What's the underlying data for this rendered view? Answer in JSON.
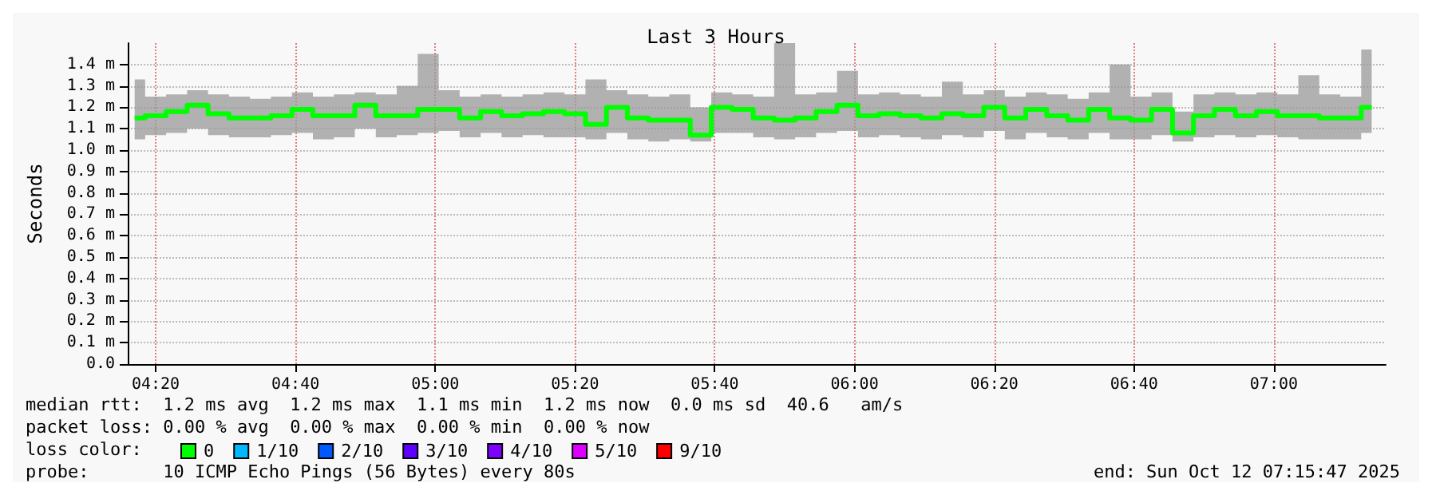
{
  "chart_data": {
    "type": "step",
    "title": "Last 3 Hours",
    "ylabel": "Seconds",
    "x": [
      4.2833,
      4.3333,
      4.3833,
      4.4333,
      4.4833,
      4.5333,
      4.5833,
      4.6333,
      4.6833,
      4.7333,
      4.7833,
      4.8333,
      4.8833,
      4.9333,
      4.9833,
      5.0333,
      5.0833,
      5.1333,
      5.1833,
      5.2333,
      5.2833,
      5.3333,
      5.3833,
      5.4333,
      5.4833,
      5.5333,
      5.5833,
      5.6333,
      5.6833,
      5.7333,
      5.7833,
      5.8333,
      5.8833,
      5.9333,
      5.9833,
      6.0333,
      6.0833,
      6.1333,
      6.1833,
      6.2333,
      6.2833,
      6.3333,
      6.3833,
      6.4333,
      6.4833,
      6.5333,
      6.5833,
      6.6333,
      6.6833,
      6.7333,
      6.7833,
      6.8333,
      6.8833,
      6.9333,
      6.9833,
      7.0333,
      7.0833,
      7.1333,
      7.1833,
      7.2333
    ],
    "series": [
      {
        "name": "0",
        "color": "#00ff00",
        "values": [
          1.15,
          1.16,
          1.18,
          1.21,
          1.17,
          1.15,
          1.15,
          1.16,
          1.19,
          1.16,
          1.16,
          1.21,
          1.16,
          1.16,
          1.19,
          1.19,
          1.15,
          1.18,
          1.16,
          1.17,
          1.18,
          1.17,
          1.12,
          1.2,
          1.15,
          1.14,
          1.14,
          1.07,
          1.2,
          1.19,
          1.15,
          1.14,
          1.15,
          1.18,
          1.21,
          1.16,
          1.17,
          1.16,
          1.15,
          1.17,
          1.16,
          1.2,
          1.15,
          1.19,
          1.16,
          1.14,
          1.19,
          1.15,
          1.14,
          1.19,
          1.08,
          1.16,
          1.19,
          1.16,
          1.18,
          1.16,
          1.16,
          1.15,
          1.15,
          1.2
        ],
        "lower": [
          1.05,
          1.07,
          1.08,
          1.1,
          1.07,
          1.06,
          1.06,
          1.07,
          1.08,
          1.05,
          1.06,
          1.1,
          1.06,
          1.07,
          1.08,
          1.09,
          1.06,
          1.08,
          1.06,
          1.07,
          1.06,
          1.06,
          1.05,
          1.08,
          1.05,
          1.04,
          1.05,
          1.04,
          1.08,
          1.08,
          1.06,
          1.05,
          1.06,
          1.08,
          1.09,
          1.06,
          1.07,
          1.06,
          1.05,
          1.07,
          1.06,
          1.09,
          1.05,
          1.08,
          1.06,
          1.05,
          1.08,
          1.05,
          1.05,
          1.07,
          1.04,
          1.06,
          1.07,
          1.06,
          1.07,
          1.06,
          1.05,
          1.05,
          1.05,
          1.08
        ],
        "upper": [
          1.33,
          1.25,
          1.26,
          1.28,
          1.26,
          1.25,
          1.24,
          1.25,
          1.27,
          1.25,
          1.26,
          1.27,
          1.26,
          1.3,
          1.45,
          1.28,
          1.25,
          1.26,
          1.25,
          1.26,
          1.27,
          1.26,
          1.33,
          1.28,
          1.26,
          1.25,
          1.26,
          1.2,
          1.27,
          1.26,
          1.25,
          1.5,
          1.26,
          1.27,
          1.37,
          1.26,
          1.27,
          1.26,
          1.25,
          1.32,
          1.26,
          1.28,
          1.25,
          1.27,
          1.26,
          1.24,
          1.27,
          1.4,
          1.25,
          1.27,
          1.18,
          1.26,
          1.27,
          1.26,
          1.27,
          1.26,
          1.35,
          1.26,
          1.25,
          1.47
        ]
      },
      {
        "name": "1/10",
        "color": "#00b8ff",
        "values": [
          null,
          null,
          null,
          null,
          null,
          null,
          null,
          null,
          null,
          null,
          null,
          null,
          null,
          null,
          null,
          null,
          null,
          null,
          null,
          null,
          null,
          null,
          null,
          null,
          null,
          null,
          null,
          null,
          null,
          null,
          null,
          null,
          null,
          null,
          null,
          null,
          null,
          null,
          null,
          null,
          null,
          null,
          null,
          null,
          null,
          null,
          null,
          null,
          null,
          null,
          null,
          null,
          null,
          null,
          null,
          null,
          null,
          null,
          null,
          null
        ]
      },
      {
        "name": "2/10",
        "color": "#0059ff",
        "values": [
          null,
          null,
          null,
          null,
          null,
          null,
          null,
          null,
          null,
          null,
          null,
          null,
          null,
          null,
          null,
          null,
          null,
          null,
          null,
          null,
          null,
          null,
          null,
          null,
          null,
          null,
          null,
          null,
          null,
          null,
          null,
          null,
          null,
          null,
          null,
          null,
          null,
          null,
          null,
          null,
          null,
          null,
          null,
          null,
          null,
          null,
          null,
          null,
          null,
          null,
          null,
          null,
          null,
          null,
          null,
          null,
          null,
          null,
          null,
          null
        ]
      },
      {
        "name": "3/10",
        "color": "#5e00ff",
        "values": [
          null,
          null,
          null,
          null,
          null,
          null,
          null,
          null,
          null,
          null,
          null,
          null,
          null,
          null,
          null,
          null,
          null,
          null,
          null,
          null,
          null,
          null,
          null,
          null,
          null,
          null,
          null,
          null,
          null,
          null,
          null,
          null,
          null,
          null,
          null,
          null,
          null,
          null,
          null,
          null,
          null,
          null,
          null,
          null,
          null,
          null,
          null,
          null,
          null,
          null,
          null,
          null,
          null,
          null,
          null,
          null,
          null,
          null,
          null,
          null
        ]
      },
      {
        "name": "4/10",
        "color": "#7e00ff",
        "values": [
          null,
          null,
          null,
          null,
          null,
          null,
          null,
          null,
          null,
          null,
          null,
          null,
          null,
          null,
          null,
          null,
          null,
          null,
          null,
          null,
          null,
          null,
          null,
          null,
          null,
          null,
          null,
          null,
          null,
          null,
          null,
          null,
          null,
          null,
          null,
          null,
          null,
          null,
          null,
          null,
          null,
          null,
          null,
          null,
          null,
          null,
          null,
          null,
          null,
          null,
          null,
          null,
          null,
          null,
          null,
          null,
          null,
          null,
          null,
          null
        ]
      },
      {
        "name": "5/10",
        "color": "#dd00ff",
        "values": [
          null,
          null,
          null,
          null,
          null,
          null,
          null,
          null,
          null,
          null,
          null,
          null,
          null,
          null,
          null,
          null,
          null,
          null,
          null,
          null,
          null,
          null,
          null,
          null,
          null,
          null,
          null,
          null,
          null,
          null,
          null,
          null,
          null,
          null,
          null,
          null,
          null,
          null,
          null,
          null,
          null,
          null,
          null,
          null,
          null,
          null,
          null,
          null,
          null,
          null,
          null,
          null,
          null,
          null,
          null,
          null,
          null,
          null,
          null,
          null
        ]
      },
      {
        "name": "9/10",
        "color": "#ff0000",
        "values": [
          null,
          null,
          null,
          null,
          null,
          null,
          null,
          null,
          null,
          null,
          null,
          null,
          null,
          null,
          null,
          null,
          null,
          null,
          null,
          null,
          null,
          null,
          null,
          null,
          null,
          null,
          null,
          null,
          null,
          null,
          null,
          null,
          null,
          null,
          null,
          null,
          null,
          null,
          null,
          null,
          null,
          null,
          null,
          null,
          null,
          null,
          null,
          null,
          null,
          null,
          null,
          null,
          null,
          null,
          null,
          null,
          null,
          null,
          null,
          null
        ]
      }
    ],
    "xlim": [
      4.2667,
      7.2667
    ],
    "xticks": [
      {
        "value": 4.3333,
        "label": "04:20"
      },
      {
        "value": 4.6667,
        "label": "04:40"
      },
      {
        "value": 5,
        "label": "05:00"
      },
      {
        "value": 5.3333,
        "label": "05:20"
      },
      {
        "value": 5.6667,
        "label": "05:40"
      },
      {
        "value": 6,
        "label": "06:00"
      },
      {
        "value": 6.3333,
        "label": "06:20"
      },
      {
        "value": 6.6667,
        "label": "06:40"
      },
      {
        "value": 7,
        "label": "07:00"
      }
    ],
    "ylim": [
      0,
      1.5
    ],
    "yticks": [
      {
        "value": 0,
        "label": "0.0"
      },
      {
        "value": 0.1,
        "label": "0.1 m"
      },
      {
        "value": 0.2,
        "label": "0.2 m"
      },
      {
        "value": 0.3,
        "label": "0.3 m"
      },
      {
        "value": 0.4,
        "label": "0.4 m"
      },
      {
        "value": 0.5,
        "label": "0.5 m"
      },
      {
        "value": 0.6,
        "label": "0.6 m"
      },
      {
        "value": 0.7,
        "label": "0.7 m"
      },
      {
        "value": 0.8,
        "label": "0.8 m"
      },
      {
        "value": 0.9,
        "label": "0.9 m"
      },
      {
        "value": 1.0,
        "label": "1.0 m"
      },
      {
        "value": 1.1,
        "label": "1.1 m"
      },
      {
        "value": 1.2,
        "label": "1.2 m"
      },
      {
        "value": 1.3,
        "label": "1.3 m"
      },
      {
        "value": 1.4,
        "label": "1.4 m"
      }
    ],
    "grid": true,
    "legend": "bottom left",
    "legend_title": "loss color:",
    "annotations": [
      "median rtt:  1.2 ms avg  1.2 ms max  1.1 ms min  1.2 ms now  0.0 ms sd  40.6   am/s",
      "packet loss: 0.00 % avg  0.00 % max  0.00 % min  0.00 % now",
      "probe:       10 ICMP Echo Pings (56 Bytes) every 80s",
      "end: Sun Oct 12 07:15:47 2025"
    ]
  }
}
